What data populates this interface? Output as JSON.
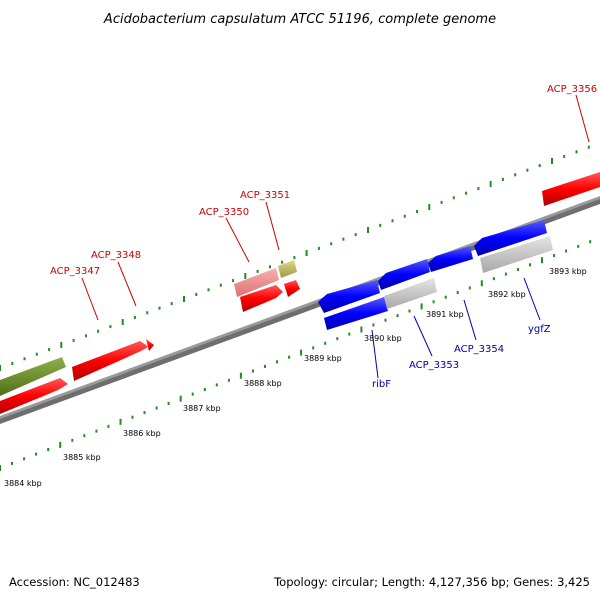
{
  "title": "Acidobacterium capsulatum ATCC 51196, complete genome",
  "footer": {
    "accession": "Accession: NC_012483",
    "summary": "Topology: circular; Length: 4,127,356 bp; Genes: 3,425"
  },
  "colors": {
    "forward_gene": "#ff0000",
    "forward_gene_light": "#f08080",
    "rna_olive": "#6b8e23",
    "rna_khaki": "#bdb76b",
    "reverse_gene": "#0000ff",
    "pseudo_grey": "#c8c8c8",
    "backbone": "#808080",
    "tick": "#228b22",
    "forward_label": "#cc0000",
    "reverse_label": "#0000aa"
  },
  "ruler_ticks": [
    "3884 kbp",
    "3885 kbp",
    "3886 kbp",
    "3887 kbp",
    "3888 kbp",
    "3889 kbp",
    "3890 kbp",
    "3891 kbp",
    "3892 kbp",
    "3893 kbp"
  ],
  "forward_labels": [
    "ACP_3347",
    "ACP_3348",
    "ACP_3350",
    "ACP_3351",
    "ACP_3356"
  ],
  "reverse_labels": [
    "ribF",
    "ACP_3353",
    "ACP_3354",
    "ygfZ"
  ]
}
